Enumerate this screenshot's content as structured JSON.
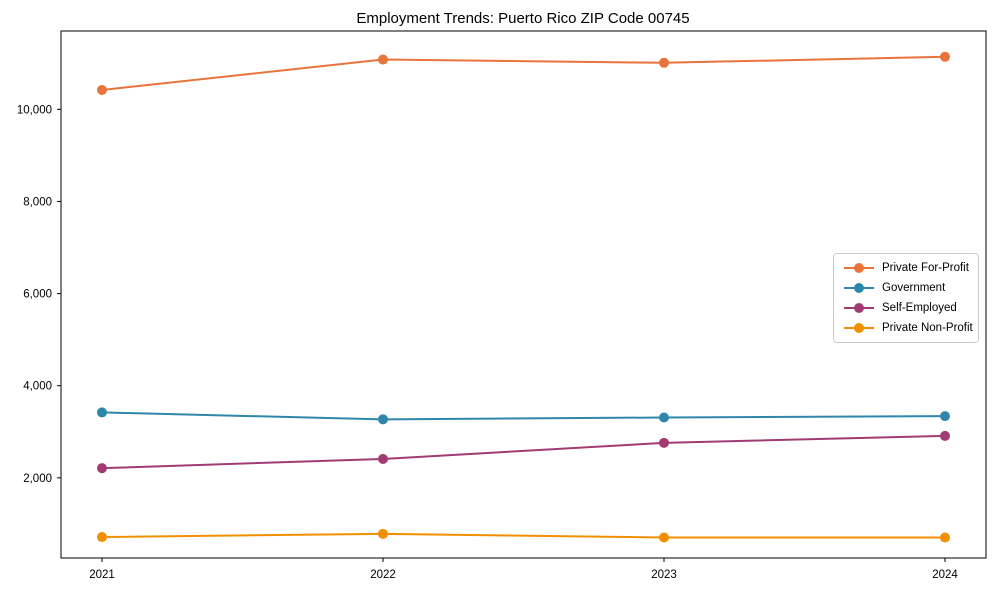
{
  "chart_data": {
    "type": "line",
    "title": "Employment Trends: Puerto Rico ZIP Code 00745",
    "xlabel": "",
    "ylabel": "",
    "categories": [
      "2021",
      "2022",
      "2023",
      "2024"
    ],
    "series": [
      {
        "name": "Private For-Profit",
        "color": "#E8743B",
        "values": [
          10420,
          11080,
          11010,
          11140
        ]
      },
      {
        "name": "Government",
        "color": "#2E86AB",
        "values": [
          3420,
          3270,
          3310,
          3340
        ]
      },
      {
        "name": "Self-Employed",
        "color": "#A23B72",
        "values": [
          2210,
          2410,
          2760,
          2910
        ]
      },
      {
        "name": "Private Non-Profit",
        "color": "#F18F01",
        "values": [
          715,
          785,
          705,
          705
        ]
      }
    ],
    "yticks": [
      2000,
      4000,
      6000,
      8000,
      10000
    ],
    "ytick_labels": [
      "2,000",
      "4,000",
      "6,000",
      "8,000",
      "10,000"
    ],
    "ylim": [
      260,
      11700
    ],
    "grid": false,
    "marker": "circle",
    "legend_position": "center-right",
    "spine_color": "#000000",
    "background_color": "#ffffff"
  }
}
